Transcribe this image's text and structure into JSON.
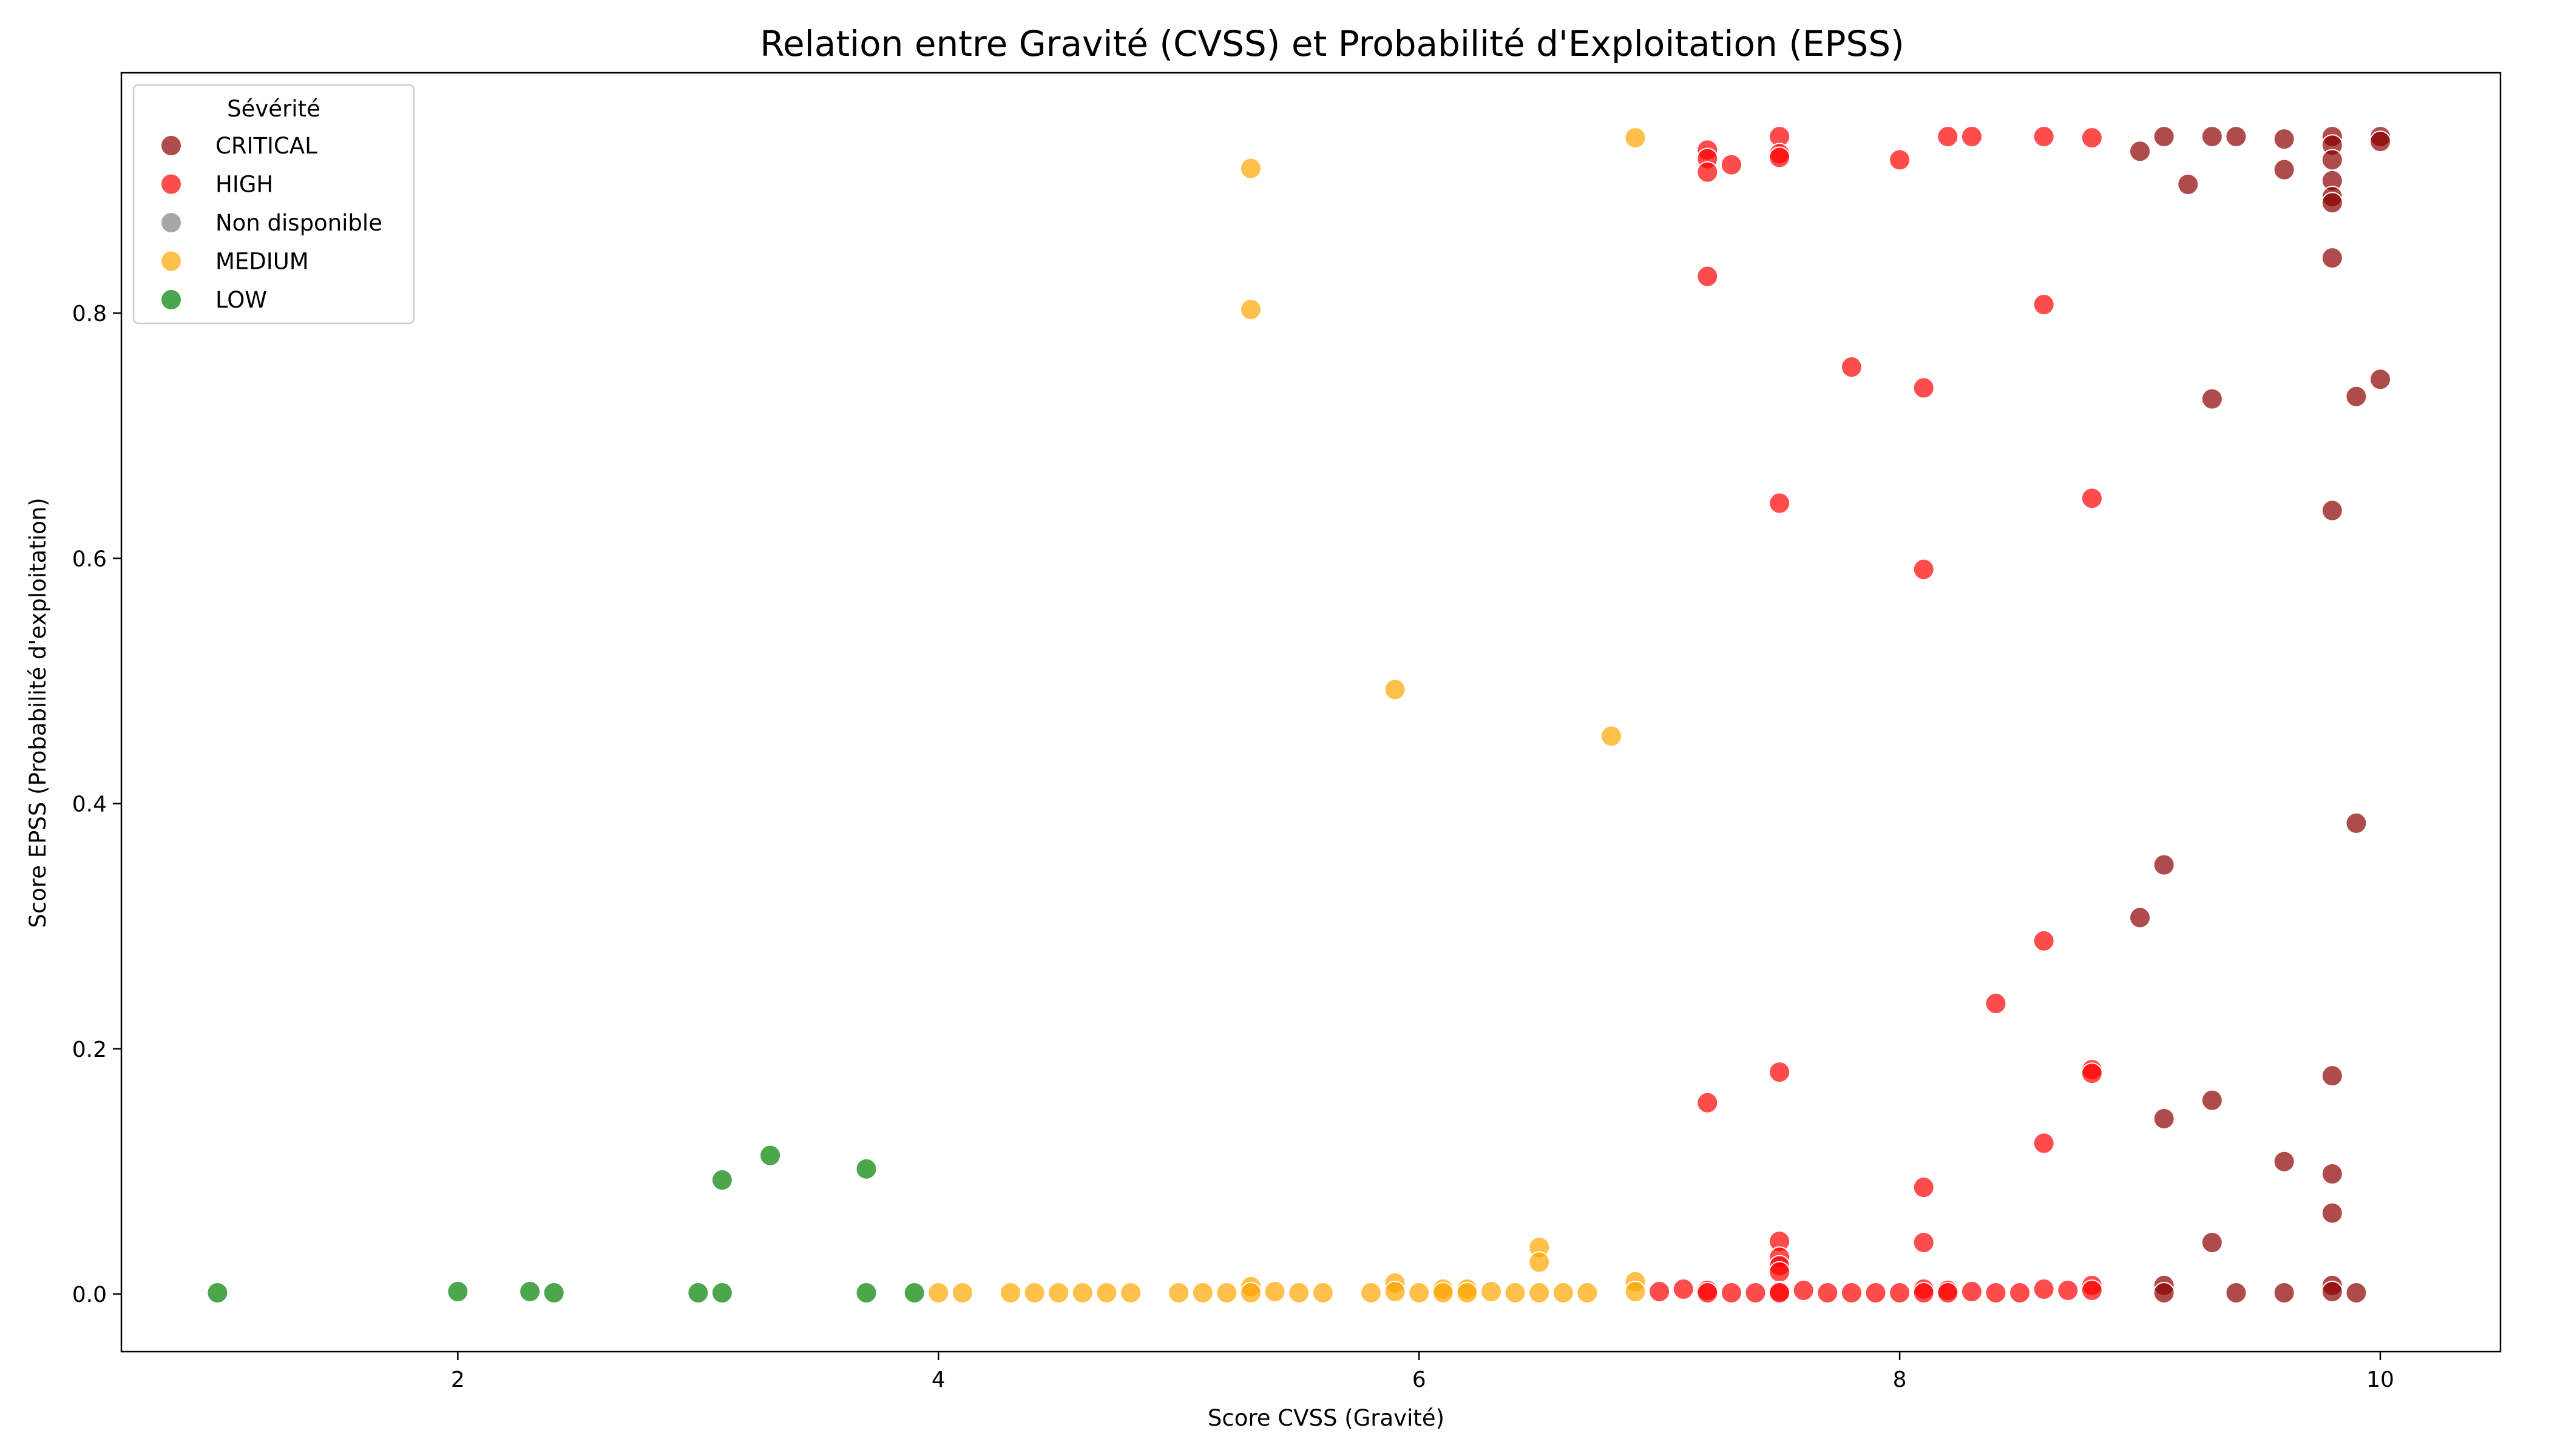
{
  "chart_data": {
    "type": "scatter",
    "title": "Relation entre Gravité (CVSS) et Probabilité d'Exploitation (EPSS)",
    "xlabel": "Score CVSS (Gravité)",
    "ylabel": "Score EPSS (Probabilité d'exploitation)",
    "xlim": [
      0.6,
      10.5
    ],
    "ylim": [
      -0.047,
      0.996
    ],
    "xticks": [
      2,
      4,
      6,
      8,
      10
    ],
    "yticks": [
      0.0,
      0.2,
      0.4,
      0.6,
      0.8
    ],
    "ytick_labels": [
      "0.0",
      "0.2",
      "0.4",
      "0.6",
      "0.8"
    ],
    "grid": false,
    "legend": {
      "title": "Sévérité",
      "placement": "top-left"
    },
    "series": [
      {
        "name": "CRITICAL",
        "color": "#8b0000",
        "points": [
          [
            9.0,
            0.932
          ],
          [
            9.1,
            0.944
          ],
          [
            9.2,
            0.905
          ],
          [
            9.3,
            0.944
          ],
          [
            9.4,
            0.944
          ],
          [
            9.6,
            0.942
          ],
          [
            9.6,
            0.917
          ],
          [
            9.8,
            0.944
          ],
          [
            9.8,
            0.937
          ],
          [
            9.8,
            0.925
          ],
          [
            9.8,
            0.908
          ],
          [
            9.8,
            0.895
          ],
          [
            9.8,
            0.89
          ],
          [
            9.8,
            0.845
          ],
          [
            10.0,
            0.944
          ],
          [
            10.0,
            0.94
          ],
          [
            9.3,
            0.73
          ],
          [
            9.9,
            0.732
          ],
          [
            10.0,
            0.746
          ],
          [
            9.8,
            0.639
          ],
          [
            9.9,
            0.384
          ],
          [
            9.1,
            0.35
          ],
          [
            9.0,
            0.307
          ],
          [
            9.8,
            0.178
          ],
          [
            9.3,
            0.158
          ],
          [
            9.1,
            0.143
          ],
          [
            9.6,
            0.108
          ],
          [
            9.8,
            0.098
          ],
          [
            9.8,
            0.066
          ],
          [
            9.3,
            0.042
          ],
          [
            9.1,
            0.007
          ],
          [
            9.1,
            0.001
          ],
          [
            9.4,
            0.001
          ],
          [
            9.6,
            0.001
          ],
          [
            9.8,
            0.007
          ],
          [
            9.8,
            0.002
          ],
          [
            9.9,
            0.001
          ]
        ]
      },
      {
        "name": "HIGH",
        "color": "#ff0000",
        "points": [
          [
            7.2,
            0.933
          ],
          [
            7.2,
            0.926
          ],
          [
            7.2,
            0.915
          ],
          [
            7.3,
            0.921
          ],
          [
            7.5,
            0.944
          ],
          [
            7.5,
            0.93
          ],
          [
            7.5,
            0.927
          ],
          [
            8.0,
            0.925
          ],
          [
            8.2,
            0.944
          ],
          [
            8.3,
            0.944
          ],
          [
            8.6,
            0.944
          ],
          [
            8.8,
            0.943
          ],
          [
            7.2,
            0.83
          ],
          [
            8.6,
            0.807
          ],
          [
            7.8,
            0.756
          ],
          [
            8.1,
            0.739
          ],
          [
            7.5,
            0.645
          ],
          [
            8.8,
            0.649
          ],
          [
            8.1,
            0.591
          ],
          [
            8.6,
            0.288
          ],
          [
            8.4,
            0.237
          ],
          [
            8.8,
            0.183
          ],
          [
            8.8,
            0.18
          ],
          [
            7.5,
            0.181
          ],
          [
            7.2,
            0.156
          ],
          [
            8.6,
            0.123
          ],
          [
            8.1,
            0.087
          ],
          [
            7.5,
            0.043
          ],
          [
            8.1,
            0.042
          ],
          [
            7.5,
            0.03
          ],
          [
            7.5,
            0.023
          ],
          [
            7.5,
            0.018
          ],
          [
            7.0,
            0.002
          ],
          [
            7.1,
            0.004
          ],
          [
            7.2,
            0.003
          ],
          [
            7.2,
            0.001
          ],
          [
            7.3,
            0.001
          ],
          [
            7.4,
            0.001
          ],
          [
            7.5,
            0.002
          ],
          [
            7.5,
            0.001
          ],
          [
            7.6,
            0.003
          ],
          [
            7.7,
            0.001
          ],
          [
            7.8,
            0.001
          ],
          [
            7.9,
            0.001
          ],
          [
            8.0,
            0.001
          ],
          [
            8.1,
            0.004
          ],
          [
            8.1,
            0.001
          ],
          [
            8.2,
            0.003
          ],
          [
            8.2,
            0.001
          ],
          [
            8.3,
            0.002
          ],
          [
            8.4,
            0.001
          ],
          [
            8.5,
            0.001
          ],
          [
            8.6,
            0.004
          ],
          [
            8.7,
            0.003
          ],
          [
            8.8,
            0.007
          ],
          [
            8.8,
            0.003
          ]
        ]
      },
      {
        "name": "Non disponible",
        "color": "#808080",
        "points": []
      },
      {
        "name": "MEDIUM",
        "color": "#ffa500",
        "points": [
          [
            6.9,
            0.943
          ],
          [
            5.3,
            0.918
          ],
          [
            5.3,
            0.803
          ],
          [
            5.9,
            0.493
          ],
          [
            6.8,
            0.455
          ],
          [
            6.5,
            0.038
          ],
          [
            6.5,
            0.026
          ],
          [
            4.0,
            0.001
          ],
          [
            4.1,
            0.001
          ],
          [
            4.3,
            0.001
          ],
          [
            4.4,
            0.001
          ],
          [
            4.5,
            0.001
          ],
          [
            4.6,
            0.001
          ],
          [
            4.7,
            0.001
          ],
          [
            4.8,
            0.001
          ],
          [
            5.0,
            0.001
          ],
          [
            5.1,
            0.001
          ],
          [
            5.2,
            0.001
          ],
          [
            5.3,
            0.006
          ],
          [
            5.3,
            0.001
          ],
          [
            5.4,
            0.002
          ],
          [
            5.5,
            0.001
          ],
          [
            5.6,
            0.001
          ],
          [
            5.8,
            0.001
          ],
          [
            5.9,
            0.009
          ],
          [
            5.9,
            0.002
          ],
          [
            6.0,
            0.001
          ],
          [
            6.1,
            0.004
          ],
          [
            6.1,
            0.001
          ],
          [
            6.2,
            0.004
          ],
          [
            6.2,
            0.001
          ],
          [
            6.3,
            0.002
          ],
          [
            6.4,
            0.001
          ],
          [
            6.5,
            0.001
          ],
          [
            6.6,
            0.001
          ],
          [
            6.7,
            0.001
          ],
          [
            6.9,
            0.01
          ],
          [
            6.9,
            0.002
          ]
        ]
      },
      {
        "name": "LOW",
        "color": "#008000",
        "points": [
          [
            1.0,
            0.001
          ],
          [
            2.0,
            0.002
          ],
          [
            2.3,
            0.002
          ],
          [
            2.4,
            0.001
          ],
          [
            3.0,
            0.001
          ],
          [
            3.1,
            0.001
          ],
          [
            3.1,
            0.093
          ],
          [
            3.3,
            0.113
          ],
          [
            3.7,
            0.102
          ],
          [
            3.7,
            0.001
          ],
          [
            3.9,
            0.001
          ]
        ]
      }
    ]
  }
}
